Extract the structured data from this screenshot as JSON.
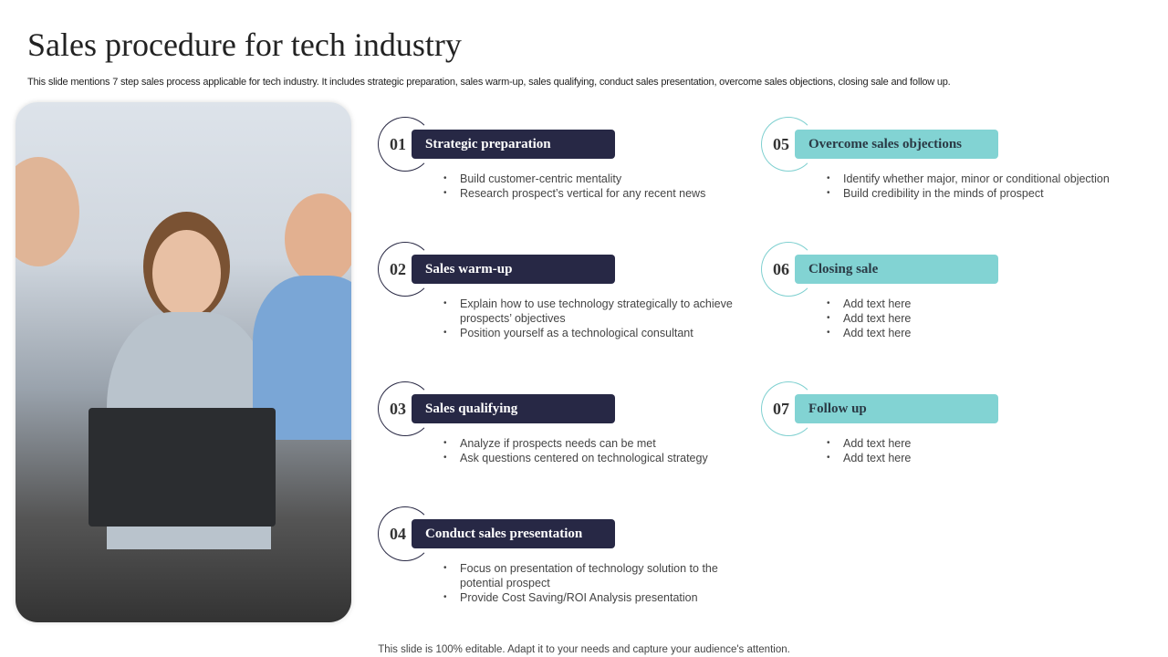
{
  "title": "Sales procedure for tech industry",
  "subtitle": "This slide mentions 7 step sales process applicable for tech industry. It includes strategic preparation, sales warm-up, sales qualifying, conduct sales presentation, overcome sales objections, closing sale and follow up.",
  "colors": {
    "dark": "#272845",
    "teal": "#82d3d3"
  },
  "steps": [
    {
      "num": "01",
      "label": "Strategic preparation",
      "bullets": [
        "Build customer-centric mentality",
        "Research prospect’s vertical for any recent news"
      ]
    },
    {
      "num": "02",
      "label": "Sales warm-up",
      "bullets": [
        "Explain how to use technology strategically to achieve prospects’ objectives",
        "Position yourself as a technological consultant"
      ]
    },
    {
      "num": "03",
      "label": "Sales qualifying",
      "bullets": [
        "Analyze if prospects needs can be met",
        "Ask questions centered on technological strategy"
      ]
    },
    {
      "num": "04",
      "label": "Conduct  sales presentation",
      "bullets": [
        "Focus on presentation of technology solution to the potential prospect",
        "Provide  Cost Saving/ROI  Analysis presentation"
      ]
    },
    {
      "num": "05",
      "label": "Overcome sales objections",
      "bullets": [
        "Identify whether major, minor or conditional objection",
        "Build credibility in the minds of prospect"
      ]
    },
    {
      "num": "06",
      "label": "Closing sale",
      "bullets": [
        "Add text here",
        "Add text here",
        "Add text here"
      ]
    },
    {
      "num": "07",
      "label": "Follow  up",
      "bullets": [
        "Add text here",
        "Add text here"
      ]
    }
  ],
  "footer": "This slide is 100% editable. Adapt it to your needs and capture your audience's attention."
}
